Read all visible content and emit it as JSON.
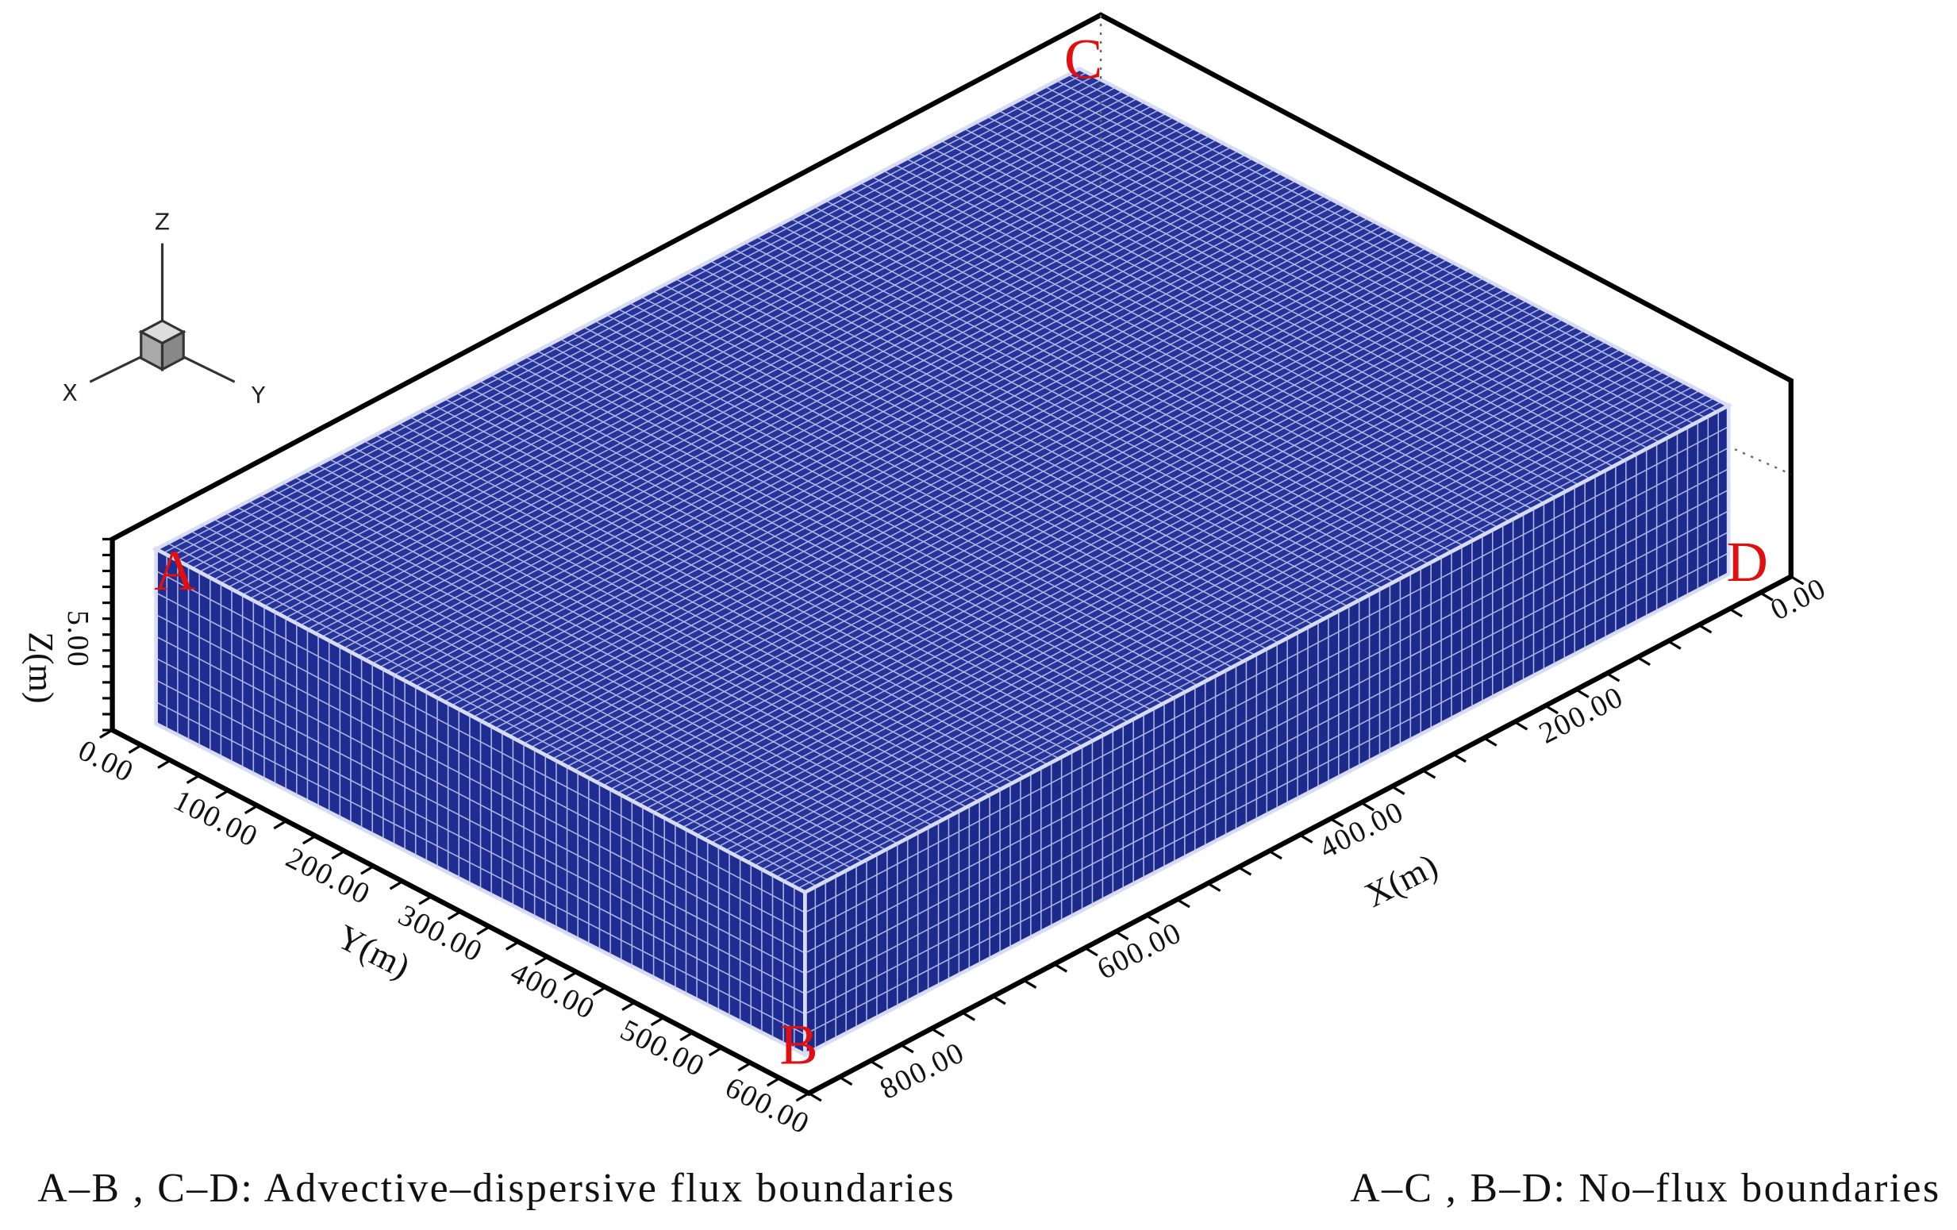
{
  "corner_labels": [
    "A",
    "B",
    "C",
    "D"
  ],
  "axis_triad": {
    "x": "X",
    "y": "Y",
    "z": "Z"
  },
  "axes": {
    "x": {
      "title": "X(m)",
      "ticks": [
        "0.00",
        "200.00",
        "400.00",
        "600.00",
        "800.00"
      ]
    },
    "y": {
      "title": "Y(m)",
      "ticks": [
        "0.00",
        "100.00",
        "200.00",
        "300.00",
        "400.00",
        "500.00",
        "600.00"
      ]
    },
    "z": {
      "title": "Z(m)",
      "ticks": [
        "5.00"
      ]
    }
  },
  "captions": [
    "A–B , C–D: Advective–dispersive flux boundaries",
    "A–C , B–D: No–flux boundaries"
  ]
}
